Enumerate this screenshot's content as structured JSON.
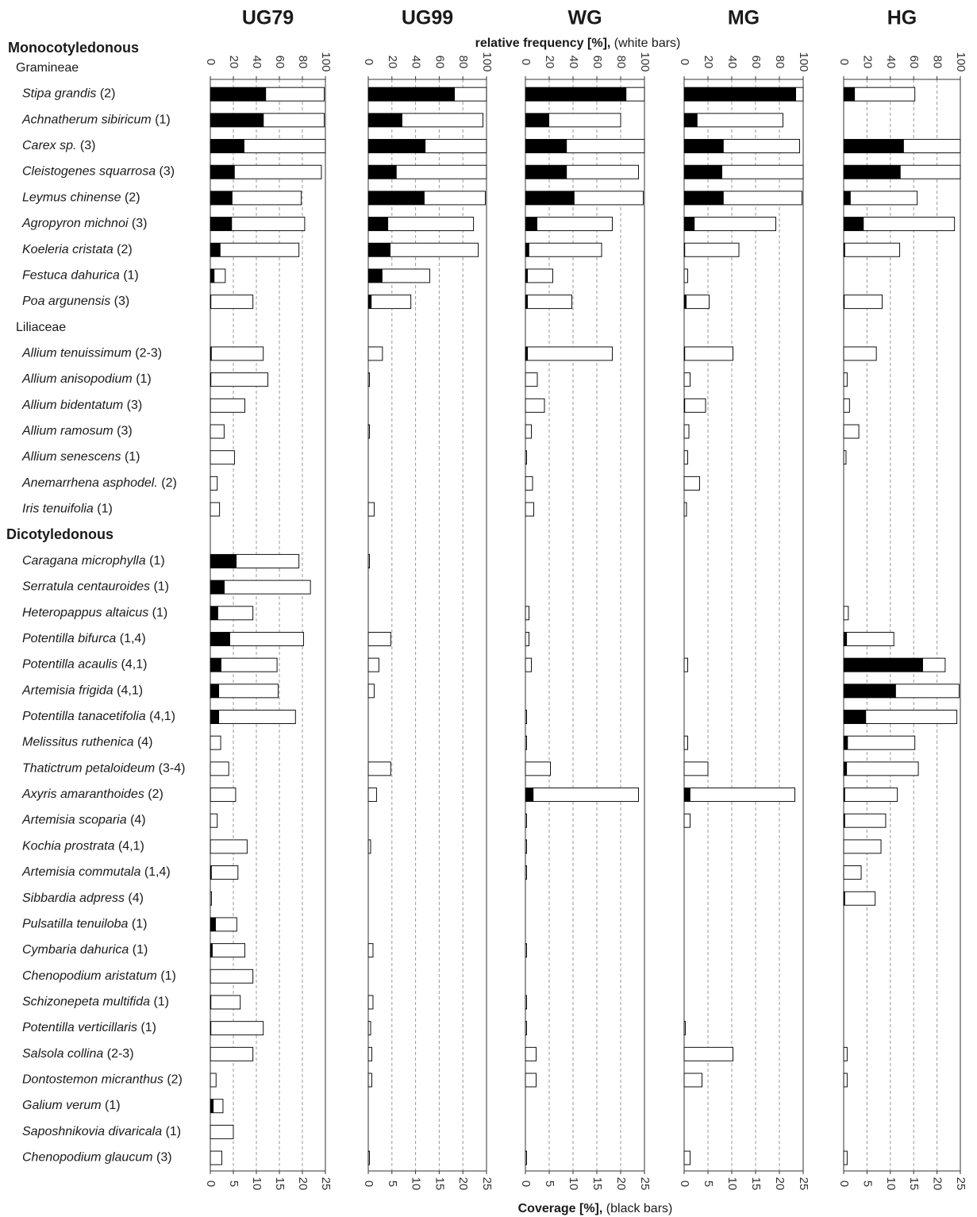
{
  "chart_data": {
    "type": "bar",
    "top_axis_label": {
      "bold": "relative frequency [%],",
      "normal": "(white bars)"
    },
    "bottom_axis_label": {
      "bold": "Coverage [%],",
      "normal": "(black bars)"
    },
    "xlim": [
      0,
      100
    ],
    "xticks": [
      0,
      20,
      40,
      60,
      80,
      100
    ],
    "x2lim": [
      0,
      25
    ],
    "x2ticks": [
      0,
      5,
      10,
      15,
      20,
      25
    ],
    "grid": true,
    "groups": [
      {
        "class": "Monocotyledonous",
        "family": "Gramineae",
        "species": [
          {
            "name": "Stipa grandis",
            "note": "(2)"
          },
          {
            "name": "Achnatherum sibiricum",
            "note": "(1)"
          },
          {
            "name": "Carex sp.",
            "note": "(3)"
          },
          {
            "name": "Cleistogenes squarrosa",
            "note": "(3)"
          },
          {
            "name": "Leymus chinense",
            "note": "(2)"
          },
          {
            "name": "Agropyron michnoi",
            "note": "(3)"
          },
          {
            "name": "Koeleria cristata",
            "note": "(2)"
          },
          {
            "name": "Festuca dahurica",
            "note": "(1)"
          },
          {
            "name": "Poa argunensis",
            "note": "(3)"
          }
        ]
      },
      {
        "family": "Liliaceae",
        "species": [
          {
            "name": "Allium tenuissimum",
            "note": "(2-3)"
          },
          {
            "name": "Allium anisopodium",
            "note": "(1)"
          },
          {
            "name": "Allium bidentatum",
            "note": "(3)"
          },
          {
            "name": "Allium ramosum",
            "note": "(3)"
          },
          {
            "name": "Allium senescens",
            "note": "(1)"
          },
          {
            "name": "Anemarrhena asphodel.",
            "note": "(2)"
          },
          {
            "name": "Iris tenuifolia",
            "note": "(1)"
          }
        ]
      },
      {
        "class": "Dicotyledonous",
        "species": [
          {
            "name": "Caragana microphylla",
            "note": "(1)"
          },
          {
            "name": "Serratula centauroides",
            "note": "(1)"
          },
          {
            "name": "Heteropappus altaicus",
            "note": "(1)"
          },
          {
            "name": "Potentilla bifurca",
            "note": "(1,4)"
          },
          {
            "name": "Potentilla acaulis",
            "note": "(4,1)"
          },
          {
            "name": "Artemisia frigida",
            "note": "(4,1)"
          },
          {
            "name": "Potentilla tanacetifolia",
            "note": "(4,1)"
          },
          {
            "name": "Melissitus ruthenica",
            "note": "(4)"
          },
          {
            "name": "Thatictrum petaloideum",
            "note": "(3-4)"
          },
          {
            "name": "Axyris amaranthoides",
            "note": "(2)"
          },
          {
            "name": "Artemisia scoparia",
            "note": "(4)"
          },
          {
            "name": "Kochia prostrata",
            "note": "(4,1)"
          },
          {
            "name": "Artemisia commutala",
            "note": "(1,4)"
          },
          {
            "name": "Sibbardia adpress",
            "note": "(4)"
          },
          {
            "name": "Pulsatilla tenuiloba",
            "note": "(1)"
          },
          {
            "name": "Cymbaria dahurica",
            "note": "(1)"
          },
          {
            "name": "Chenopodium aristatum",
            "note": "(1)"
          },
          {
            "name": "Schizonepeta multifida",
            "note": "(1)"
          },
          {
            "name": "Potentilla verticillaris",
            "note": "(1)"
          },
          {
            "name": "Salsola collina",
            "note": "(2-3)"
          },
          {
            "name": "Dontostemon micranthus",
            "note": "(2)"
          },
          {
            "name": "Galium verum",
            "note": "(1)"
          },
          {
            "name": "Saposhnikovia divaricala",
            "note": "(1)"
          },
          {
            "name": "Chenopodium glaucum",
            "note": "(3)"
          }
        ]
      }
    ],
    "panels": [
      {
        "name": "UG79",
        "frequency": [
          99,
          99,
          100,
          96.5,
          79,
          82,
          77,
          13,
          37,
          46,
          50,
          30,
          12,
          21,
          6,
          8,
          77,
          87,
          37,
          81,
          58,
          59,
          74,
          9,
          16,
          22,
          6,
          32,
          24,
          1,
          23,
          30,
          37,
          26,
          46,
          37,
          5,
          11,
          20,
          10
        ],
        "coverage": [
          12.1,
          11.6,
          7.4,
          5.3,
          4.8,
          4.7,
          2.2,
          0.9,
          0.2,
          0.3,
          0.2,
          0.1,
          0,
          0,
          0,
          0,
          5.7,
          3.1,
          1.7,
          4.3,
          2.4,
          1.9,
          1.9,
          0,
          0,
          0.1,
          0,
          0.1,
          0.3,
          0,
          1.2,
          0.5,
          0.1,
          0.2,
          0.2,
          0.1,
          0,
          0.7,
          0,
          0
        ]
      },
      {
        "name": "UG99",
        "frequency": [
          100,
          97,
          100,
          100,
          99,
          89,
          93,
          52,
          36,
          12,
          1,
          null,
          1,
          null,
          null,
          5,
          1,
          null,
          null,
          19,
          9,
          5,
          null,
          null,
          19,
          7,
          null,
          2,
          null,
          null,
          null,
          4,
          null,
          4,
          2,
          3,
          3,
          null,
          null,
          1
        ],
        "coverage": [
          18.3,
          7.2,
          12.1,
          6.0,
          11.9,
          4.2,
          4.7,
          3.0,
          0.7,
          0,
          0,
          null,
          0,
          null,
          null,
          0,
          0,
          null,
          null,
          0,
          0,
          0,
          null,
          null,
          0,
          0,
          null,
          0,
          null,
          null,
          null,
          0,
          null,
          0,
          0,
          0,
          0,
          null,
          null,
          0
        ]
      },
      {
        "name": "WG",
        "frequency": [
          100,
          80,
          100,
          95,
          99,
          73,
          64,
          23,
          39,
          73,
          10,
          16,
          5,
          1,
          6,
          7,
          null,
          null,
          3,
          3,
          5,
          null,
          1,
          1,
          21,
          95,
          1,
          1,
          1,
          null,
          null,
          1,
          null,
          1,
          1,
          9,
          9,
          null,
          null,
          1
        ],
        "coverage": [
          21.2,
          5.0,
          8.7,
          8.7,
          10.3,
          2.5,
          0.8,
          0.5,
          0.5,
          0.5,
          0,
          0,
          0,
          0,
          0,
          0,
          null,
          null,
          0,
          0,
          0,
          null,
          0,
          0,
          0,
          1.7,
          0,
          0,
          0,
          null,
          null,
          0,
          null,
          0,
          0,
          0,
          0,
          null,
          null,
          0
        ]
      },
      {
        "name": "MG",
        "frequency": [
          100,
          83,
          97,
          100,
          99,
          77,
          46,
          3,
          21,
          41,
          5,
          18,
          4,
          3,
          13,
          2,
          null,
          null,
          null,
          null,
          3,
          null,
          null,
          3,
          20,
          93,
          5,
          null,
          null,
          null,
          null,
          null,
          null,
          null,
          1,
          41,
          15,
          null,
          null,
          5
        ],
        "coverage": [
          23.5,
          2.8,
          8.3,
          8.0,
          8.3,
          2.2,
          0.2,
          0,
          0.5,
          0.2,
          0,
          0.2,
          0,
          0,
          0,
          0,
          null,
          null,
          null,
          null,
          0,
          null,
          null,
          0,
          0,
          1.3,
          0,
          null,
          null,
          null,
          null,
          null,
          null,
          null,
          0,
          0,
          0,
          null,
          null,
          0
        ]
      },
      {
        "name": "HG",
        "frequency": [
          61,
          null,
          100,
          100,
          63,
          95,
          48,
          null,
          33,
          28,
          3,
          5,
          13,
          2,
          null,
          null,
          null,
          null,
          4,
          43,
          87,
          99,
          97,
          61,
          64,
          46,
          36,
          32,
          15,
          27,
          null,
          null,
          null,
          null,
          null,
          3,
          3,
          null,
          null,
          3
        ],
        "coverage": [
          2.4,
          null,
          12.9,
          12.2,
          1.5,
          4.3,
          0.3,
          null,
          0.2,
          0,
          0,
          0,
          0,
          0,
          null,
          null,
          null,
          null,
          0,
          0.7,
          17.0,
          11.2,
          4.8,
          0.9,
          0.7,
          0.3,
          0.3,
          0,
          0,
          0.3,
          null,
          null,
          null,
          null,
          null,
          0,
          0,
          null,
          null,
          0
        ]
      }
    ]
  }
}
